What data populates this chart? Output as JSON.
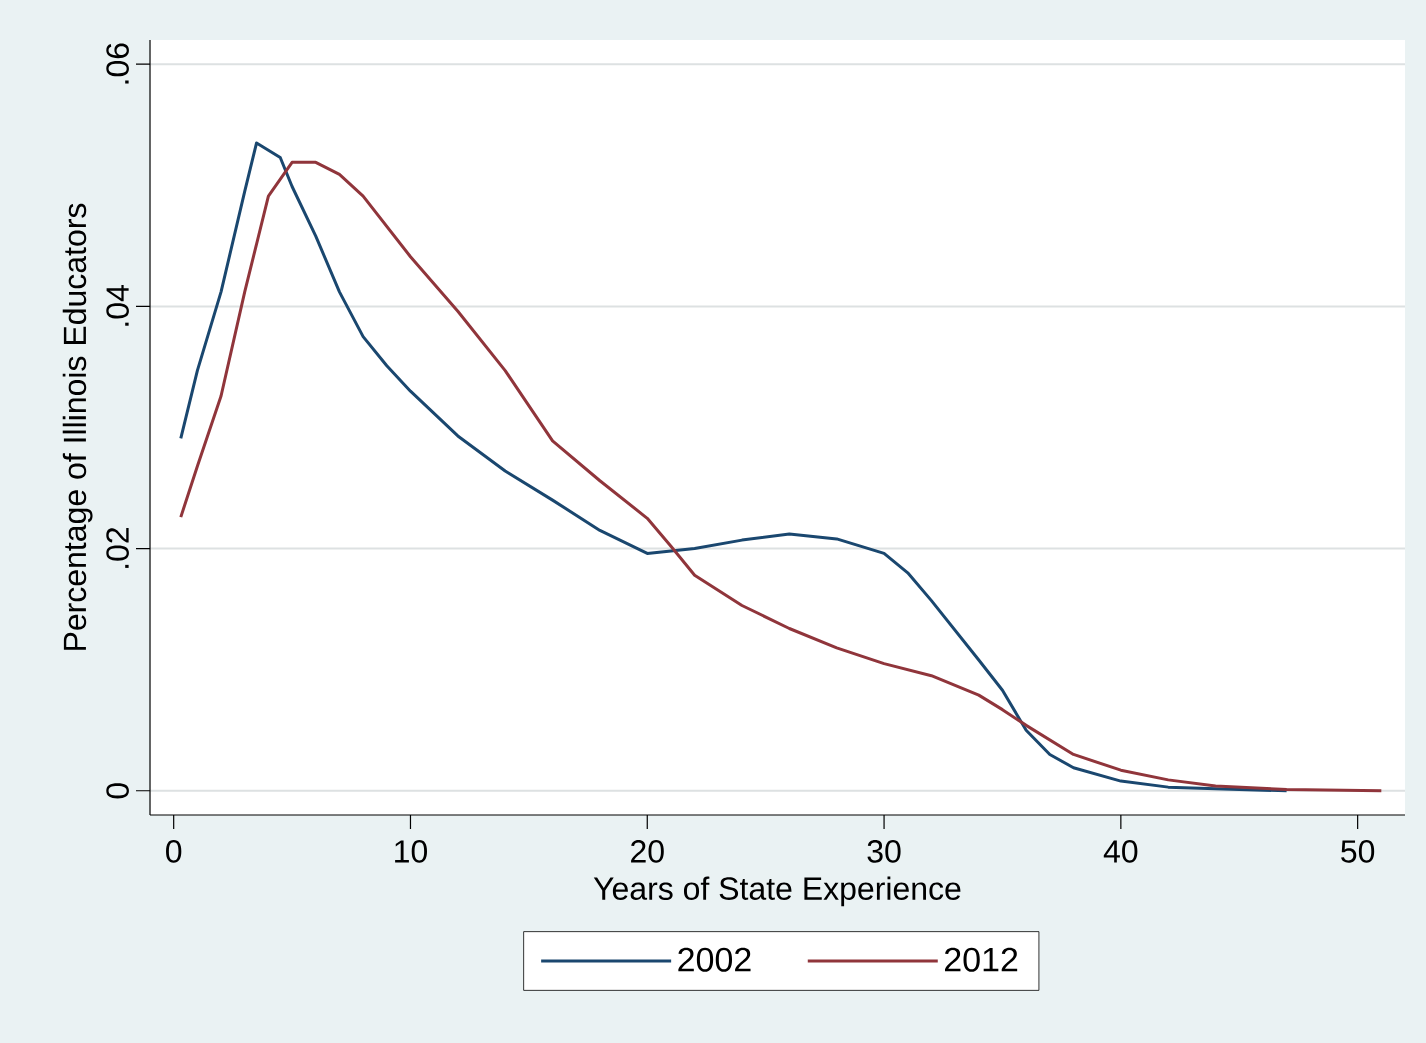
{
  "chart_data": {
    "type": "line",
    "xlabel": "Years of State Experience",
    "ylabel": "Percentage of Illinois Educators",
    "xlim": [
      -1,
      52
    ],
    "ylim": [
      -0.002,
      0.062
    ],
    "xticks": [
      0,
      10,
      20,
      30,
      40,
      50
    ],
    "yticks": [
      0,
      {
        "value": 0.02,
        "label": ".02"
      },
      {
        "value": 0.04,
        "label": ".04"
      },
      {
        "value": 0.06,
        "label": ".06"
      }
    ],
    "grid": "y",
    "legend": "bottom",
    "marker": "none",
    "line_style": "solid",
    "series": [
      {
        "name": "2002",
        "color": "#1a476f",
        "x": [
          0.3,
          1,
          2,
          3,
          3.5,
          4.5,
          5,
          6,
          7,
          8,
          9,
          10,
          12,
          14,
          16,
          18,
          20,
          22,
          24,
          26,
          28,
          30,
          31,
          32,
          34,
          35,
          36,
          37,
          38,
          40,
          42,
          45,
          47
        ],
        "values": [
          0.0291,
          0.0347,
          0.0412,
          0.0495,
          0.0535,
          0.0523,
          0.0499,
          0.0458,
          0.0412,
          0.0375,
          0.0351,
          0.033,
          0.0293,
          0.0264,
          0.024,
          0.0215,
          0.0196,
          0.02,
          0.0207,
          0.0212,
          0.0208,
          0.0196,
          0.018,
          0.0157,
          0.0108,
          0.0083,
          0.005,
          0.003,
          0.0019,
          0.0008,
          0.0003,
          0.0001,
          0
        ]
      },
      {
        "name": "2012",
        "color": "#90353b",
        "x": [
          0.3,
          1,
          2,
          3,
          4,
          5,
          6,
          7,
          8,
          9,
          10,
          12,
          14,
          16,
          18,
          20,
          21,
          22,
          24,
          26,
          28,
          30,
          32,
          34,
          35,
          36,
          38,
          40,
          42,
          44,
          47,
          51
        ],
        "values": [
          0.0226,
          0.0268,
          0.0326,
          0.0412,
          0.0491,
          0.0519,
          0.0519,
          0.0509,
          0.0491,
          0.0466,
          0.0441,
          0.0396,
          0.0347,
          0.0289,
          0.0256,
          0.0225,
          0.0202,
          0.0178,
          0.0153,
          0.0134,
          0.0118,
          0.0105,
          0.0095,
          0.0079,
          0.0067,
          0.0054,
          0.003,
          0.0017,
          0.0009,
          0.0004,
          0.0001,
          0
        ]
      }
    ]
  }
}
